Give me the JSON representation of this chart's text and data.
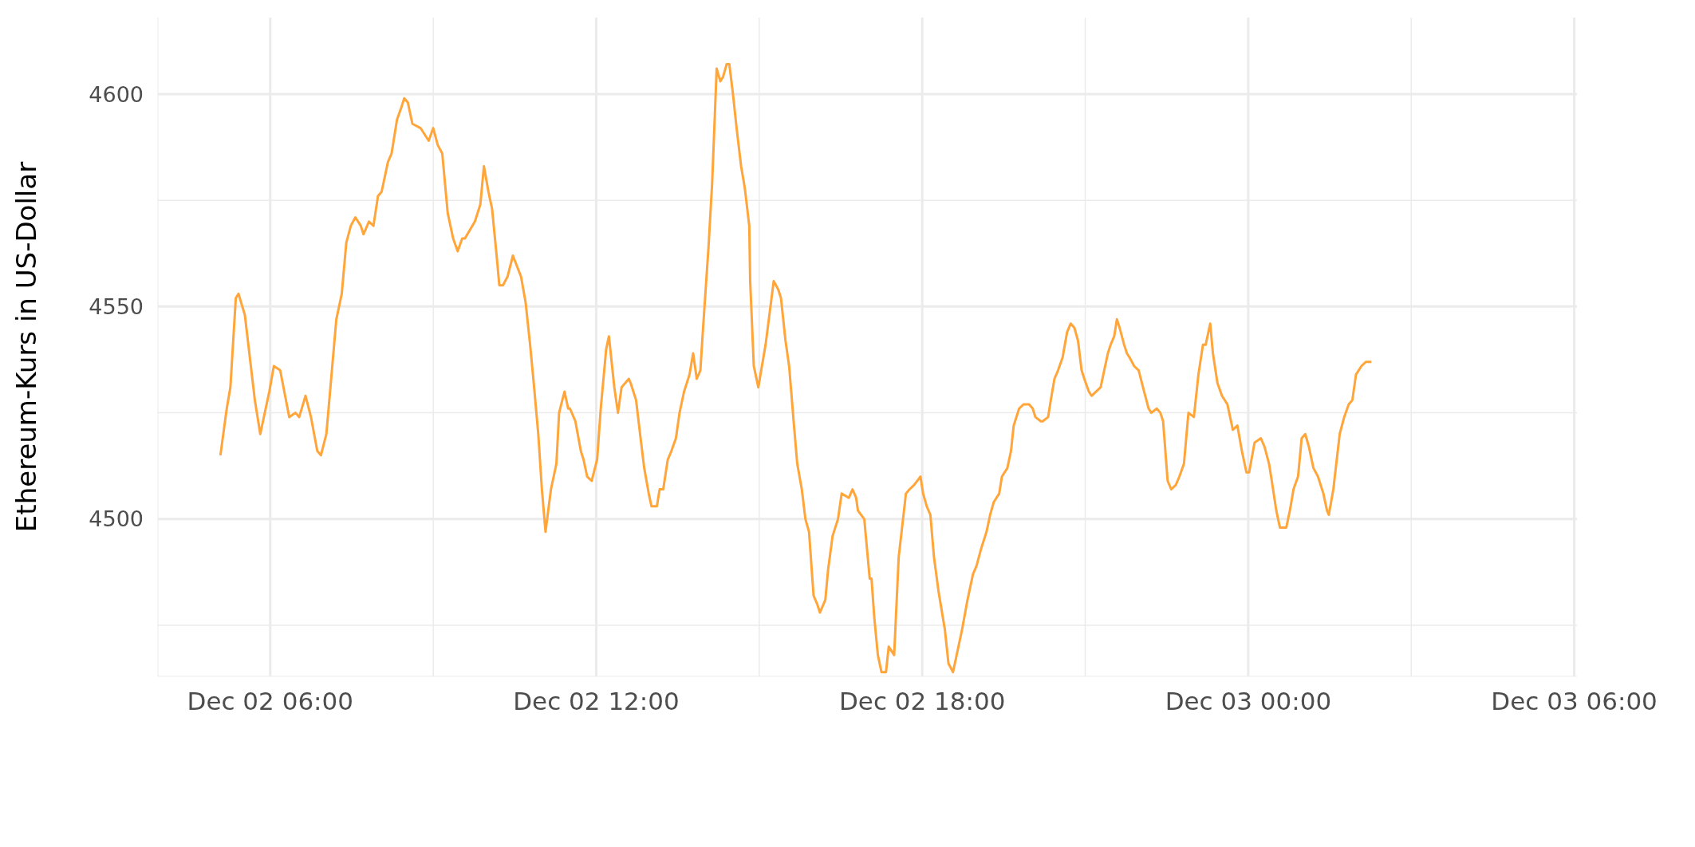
{
  "chart_data": {
    "type": "line",
    "ylabel": "Ethereum-Kurs in US-Dollar",
    "color": "#ffa53a",
    "grid": true,
    "xlim": [
      "--12-02T03:56",
      "--12-03T06:03"
    ],
    "ylim": [
      4463,
      4618
    ],
    "xticks": [
      {
        "value": "--12-02T06:00",
        "label": "Dec 02 06:00"
      },
      {
        "value": "--12-02T09:00",
        "label": null
      },
      {
        "value": "--12-02T12:00",
        "label": "Dec 02 12:00"
      },
      {
        "value": "--12-02T15:00",
        "label": null
      },
      {
        "value": "--12-02T18:00",
        "label": "Dec 02 18:00"
      },
      {
        "value": "--12-02T21:00",
        "label": null
      },
      {
        "value": "--12-03T00:00",
        "label": "Dec 03 00:00"
      },
      {
        "value": "--12-03T03:00",
        "label": null
      },
      {
        "value": "--12-03T06:00",
        "label": "Dec 03 06:00"
      }
    ],
    "yticks": [
      {
        "value": 4475,
        "label": null
      },
      4500,
      {
        "value": 4525,
        "label": null
      },
      4550,
      {
        "value": 4575,
        "label": null
      },
      4600
    ],
    "x": [
      "--12-02T05:05",
      "--12-02T05:12",
      "--12-02T05:16",
      "--12-02T05:22",
      "--12-02T05:25",
      "--12-02T05:32",
      "--12-02T05:43",
      "--12-02T05:49",
      "--12-02T05:59",
      "--12-02T06:04",
      "--12-02T06:11",
      "--12-02T06:21",
      "--12-02T06:28",
      "--12-02T06:32",
      "--12-02T06:39",
      "--12-02T06:45",
      "--12-02T06:52",
      "--12-02T06:56",
      "--12-02T07:02",
      "--12-02T07:13",
      "--12-02T07:19",
      "--12-02T07:24",
      "--12-02T07:29",
      "--12-02T07:34",
      "--12-02T07:40",
      "--12-02T07:43",
      "--12-02T07:49",
      "--12-02T07:54",
      "--12-02T07:59",
      "--12-02T08:03",
      "--12-02T08:10",
      "--12-02T08:14",
      "--12-02T08:20",
      "--12-02T08:25",
      "--12-02T08:28",
      "--12-02T08:32",
      "--12-02T08:37",
      "--12-02T08:46",
      "--12-02T08:55",
      "--12-02T09:00",
      "--12-02T09:05",
      "--12-02T09:10",
      "--12-02T09:16",
      "--12-02T09:22",
      "--12-02T09:27",
      "--12-02T09:32",
      "--12-02T09:35",
      "--12-02T09:46",
      "--12-02T09:52",
      "--12-02T09:56",
      "--12-02T10:01",
      "--12-02T10:05",
      "--12-02T10:10",
      "--12-02T10:13",
      "--12-02T10:17",
      "--12-02T10:22",
      "--12-02T10:28",
      "--12-02T10:37",
      "--12-02T10:42",
      "--12-02T10:47",
      "--12-02T10:51",
      "--12-02T10:56",
      "--12-02T11:00",
      "--12-02T11:04",
      "--12-02T11:10",
      "--12-02T11:16",
      "--12-02T11:19",
      "--12-02T11:25",
      "--12-02T11:29",
      "--12-02T11:31",
      "--12-02T11:37",
      "--12-02T11:43",
      "--12-02T11:46",
      "--12-02T11:50",
      "--12-02T11:55",
      "--12-02T12:01",
      "--12-02T12:05",
      "--12-02T12:11",
      "--12-02T12:14",
      "--12-02T12:20",
      "--12-02T12:24",
      "--12-02T12:28",
      "--12-02T12:36",
      "--12-02T12:38",
      "--12-02T12:44",
      "--12-02T12:49",
      "--12-02T12:53",
      "--12-02T12:58",
      "--12-02T13:01",
      "--12-02T13:07",
      "--12-02T13:10",
      "--12-02T13:14",
      "--12-02T13:19",
      "--12-02T13:23",
      "--12-02T13:28",
      "--12-02T13:32",
      "--12-02T13:37",
      "--12-02T13:43",
      "--12-02T13:47",
      "--12-02T13:51",
      "--12-02T13:55",
      "--12-02T13:58",
      "--12-02T14:04",
      "--12-02T14:08",
      "--12-02T14:13",
      "--12-02T14:17",
      "--12-02T14:20",
      "--12-02T14:24",
      "--12-02T14:27",
      "--12-02T14:31",
      "--12-02T14:35",
      "--12-02T14:40",
      "--12-02T14:44",
      "--12-02T14:49",
      "--12-02T14:50",
      "--12-02T14:54",
      "--12-02T14:59",
      "--12-02T15:07",
      "--12-02T15:16",
      "--12-02T15:21",
      "--12-02T15:24",
      "--12-02T15:29",
      "--12-02T15:33",
      "--12-02T15:38",
      "--12-02T15:42",
      "--12-02T15:47",
      "--12-02T15:51",
      "--12-02T15:55",
      "--12-02T16:00",
      "--12-02T16:04",
      "--12-02T16:07",
      "--12-02T16:13",
      "--12-02T16:16",
      "--12-02T16:21",
      "--12-02T16:27",
      "--12-02T16:31",
      "--12-02T16:39",
      "--12-02T16:43",
      "--12-02T16:47",
      "--12-02T16:49",
      "--12-02T16:56",
      "--12-02T17:02",
      "--12-02T17:04",
      "--12-02T17:07",
      "--12-02T17:11",
      "--12-02T17:15",
      "--12-02T17:20",
      "--12-02T17:23",
      "--12-02T17:29",
      "--12-02T17:34",
      "--12-02T17:42",
      "--12-02T17:46",
      "--12-02T17:51",
      "--12-02T17:58",
      "--12-02T18:01",
      "--12-02T18:05",
      "--12-02T18:09",
      "--12-02T18:13",
      "--12-02T18:18",
      "--12-02T18:25",
      "--12-02T18:29",
      "--12-02T18:34",
      "--12-02T18:40",
      "--12-02T18:44",
      "--12-02T18:50",
      "--12-02T18:56",
      "--12-02T19:00",
      "--12-02T19:05",
      "--12-02T19:11",
      "--12-02T19:15",
      "--12-02T19:19",
      "--12-02T19:25",
      "--12-02T19:28",
      "--12-02T19:34",
      "--12-02T19:38",
      "--12-02T19:41",
      "--12-02T19:47",
      "--12-02T19:52",
      "--12-02T19:58",
      "--12-02T20:02",
      "--12-02T20:05",
      "--12-02T20:11",
      "--12-02T20:13",
      "--12-02T20:19",
      "--12-02T20:22",
      "--12-02T20:26",
      "--12-02T20:30",
      "--12-02T20:35",
      "--12-02T20:40",
      "--12-02T20:44",
      "--12-02T20:48",
      "--12-02T20:52",
      "--12-02T20:56",
      "--12-02T20:59",
      "--12-02T21:04",
      "--12-02T21:07",
      "--12-02T21:17",
      "--12-02T21:20",
      "--12-02T21:25",
      "--12-02T21:28",
      "--12-02T21:32",
      "--12-02T21:35",
      "--12-02T21:38",
      "--12-02T21:43",
      "--12-02T21:46",
      "--12-02T21:49",
      "--12-02T21:54",
      "--12-02T21:59",
      "--12-02T22:05",
      "--12-02T22:10",
      "--12-02T22:13",
      "--12-02T22:19",
      "--12-02T22:23",
      "--12-02T22:26",
      "--12-02T22:31",
      "--12-02T22:35",
      "--12-02T22:40",
      "--12-02T22:44",
      "--12-02T22:49",
      "--12-02T22:54",
      "--12-02T23:00",
      "--12-02T23:05",
      "--12-02T23:10",
      "--12-02T23:13",
      "--12-02T23:18",
      "--12-02T23:21",
      "--12-02T23:26",
      "--12-02T23:31",
      "--12-02T23:37",
      "--12-02T23:39",
      "--12-02T23:43",
      "--12-02T23:48",
      "--12-02T23:53",
      "--12-02T23:58",
      "--12-03T00:01",
      "--12-03T00:07",
      "--12-03T00:14",
      "--12-03T00:18",
      "--12-03T00:23",
      "--12-03T00:26",
      "--12-03T00:31",
      "--12-03T00:35",
      "--12-03T00:38",
      "--12-03T00:42",
      "--12-03T00:46",
      "--12-03T00:50",
      "--12-03T00:55",
      "--12-03T00:59",
      "--12-03T01:03",
      "--12-03T01:07",
      "--12-03T01:12",
      "--12-03T01:17",
      "--12-03T01:23",
      "--12-03T01:27",
      "--12-03T01:29",
      "--12-03T01:34",
      "--12-03T01:41",
      "--12-03T01:46",
      "--12-03T01:51",
      "--12-03T01:55",
      "--12-03T01:59",
      "--12-03T02:05",
      "--12-03T02:10",
      "--12-03T02:16"
    ],
    "values": [
      4515,
      4526,
      4531,
      4552,
      4553,
      4548,
      4528,
      4520,
      4530,
      4536,
      4535,
      4524,
      4525,
      4524,
      4529,
      4524,
      4516,
      4515,
      4520,
      4547,
      4553,
      4565,
      4569,
      4571,
      4569,
      4567,
      4570,
      4569,
      4576,
      4577,
      4584,
      4586,
      4594,
      4597,
      4599,
      4598,
      4593,
      4592,
      4589,
      4592,
      4588,
      4586,
      4572,
      4566,
      4563,
      4566,
      4566,
      4570,
      4574,
      4583,
      4577,
      4573,
      4562,
      4555,
      4555,
      4557,
      4562,
      4557,
      4551,
      4541,
      4532,
      4520,
      4507,
      4497,
      4507,
      4513,
      4525,
      4530,
      4526,
      4526,
      4523,
      4516,
      4514,
      4510,
      4509,
      4514,
      4526,
      4540,
      4543,
      4531,
      4525,
      4531,
      4533,
      4532,
      4528,
      4519,
      4512,
      4506,
      4503,
      4503,
      4507,
      4507,
      4514,
      4516,
      4519,
      4525,
      4530,
      4534,
      4539,
      4533,
      4535,
      4545,
      4564,
      4579,
      4606,
      4603,
      4604,
      4607,
      4607,
      4600,
      4592,
      4583,
      4578,
      4569,
      4556,
      4536,
      4531,
      4541,
      4556,
      4554,
      4552,
      4542,
      4536,
      4523,
      4513,
      4507,
      4500,
      4497,
      4482,
      4480,
      4478,
      4481,
      4488,
      4496,
      4500,
      4506,
      4505,
      4507,
      4505,
      4502,
      4500,
      4486,
      4486,
      4477,
      4468,
      4464,
      4464,
      4470,
      4468,
      4491,
      4506,
      4507,
      4508,
      4510,
      4506,
      4503,
      4501,
      4491,
      4483,
      4474,
      4466,
      4464,
      4470,
      4474,
      4481,
      4487,
      4489,
      4493,
      4497,
      4501,
      4504,
      4506,
      4510,
      4512,
      4516,
      4522,
      4526,
      4527,
      4527,
      4526,
      4524,
      4523,
      4523,
      4524,
      4528,
      4533,
      4535,
      4538,
      4544,
      4546,
      4545,
      4542,
      4535,
      4533,
      4530,
      4529,
      4531,
      4534,
      4539,
      4541,
      4543,
      4547,
      4545,
      4541,
      4539,
      4538,
      4536,
      4535,
      4530,
      4526,
      4525,
      4526,
      4525,
      4523,
      4509,
      4507,
      4508,
      4510,
      4513,
      4525,
      4524,
      4534,
      4541,
      4541,
      4546,
      4539,
      4532,
      4529,
      4527,
      4525,
      4521,
      4522,
      4516,
      4511,
      4511,
      4518,
      4519,
      4517,
      4513,
      4509,
      4502,
      4498,
      4498,
      4498,
      4502,
      4507,
      4510,
      4519,
      4520,
      4517,
      4512,
      4510,
      4506,
      4502,
      4501,
      4507,
      4520,
      4524,
      4527,
      4528,
      4534,
      4536,
      4537,
      4537
    ]
  }
}
